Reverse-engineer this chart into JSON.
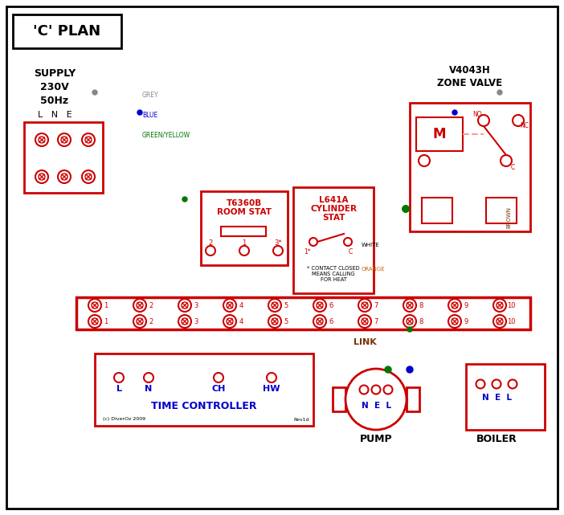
{
  "title": "'C' PLAN",
  "RED": "#cc0000",
  "BLUE": "#0000cc",
  "GREEN": "#007700",
  "GREY": "#888888",
  "BROWN": "#7b3300",
  "ORANGE": "#cc6600",
  "BLACK": "#000000",
  "PINK": "#ff9999",
  "supply_text": "SUPPLY\n230V\n50Hz",
  "lne": "L   N   E",
  "zone_valve": "V4043H\nZONE VALVE",
  "room_stat_1": "T6360B",
  "room_stat_2": "ROOM STAT",
  "cyl_stat_1": "L641A",
  "cyl_stat_2": "CYLINDER",
  "cyl_stat_3": "STAT",
  "time_ctrl": "TIME CONTROLLER",
  "pump": "PUMP",
  "boiler": "BOILER",
  "link": "LINK",
  "grey_lbl": "GREY",
  "blue_lbl": "BLUE",
  "gy_lbl": "GREEN/YELLOW",
  "brown_lbl": "BROWN",
  "white_lbl": "WHITE",
  "orange_lbl": "ORANGE",
  "contact_note": "* CONTACT CLOSED\nMEANS CALLING\nFOR HEAT",
  "rev": "Rev1d",
  "copy": "(c) DiverOz 2009",
  "nel": "N  E  L"
}
